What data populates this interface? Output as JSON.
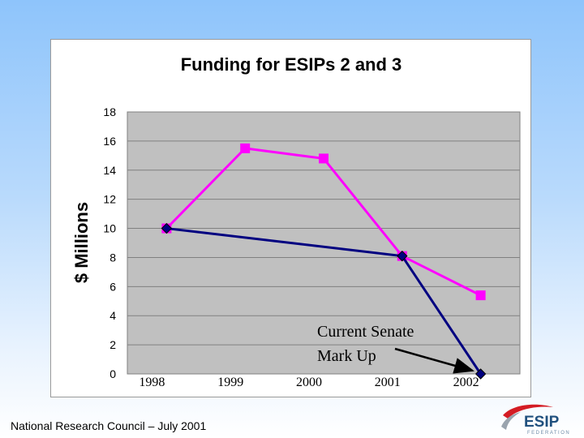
{
  "chart_data": {
    "type": "line",
    "title": "Funding for ESIPs 2 and 3",
    "ylabel": "$ Millions",
    "xlabel": "",
    "categories": [
      "1998",
      "1999",
      "2000",
      "2001",
      "2002"
    ],
    "ylim": [
      0,
      18
    ],
    "yticks": [
      0,
      2,
      4,
      6,
      8,
      10,
      12,
      14,
      16,
      18
    ],
    "grid": true,
    "series": [
      {
        "values": [
          10,
          15.5,
          14.8,
          8.1,
          5.4
        ],
        "color": "#ff00ff",
        "marker": "square"
      },
      {
        "values": [
          10,
          null,
          null,
          8.1,
          0
        ],
        "color": "#000080",
        "marker": "diamond"
      }
    ],
    "annotation": {
      "lines": [
        "Current Senate",
        "Mark Up"
      ],
      "points_to": {
        "category": "2002",
        "value": 0
      }
    },
    "plot_background": "#c0c0c0"
  },
  "footer": {
    "text": "National Research Council – July 2001"
  },
  "logo": {
    "name": "ESIP",
    "subtitle": "FEDERATION"
  }
}
